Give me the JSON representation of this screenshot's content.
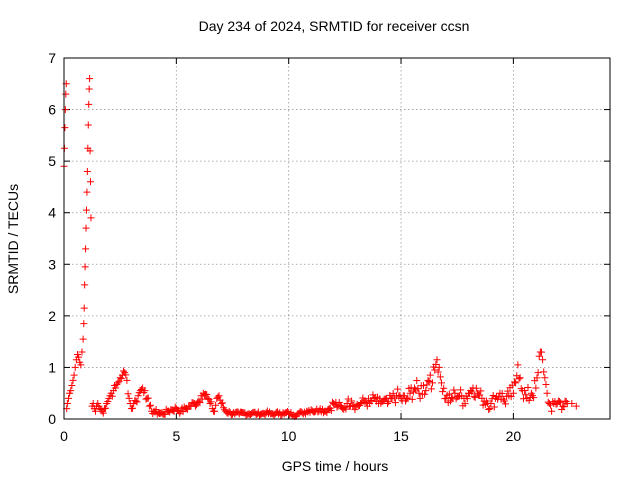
{
  "chart_data": {
    "type": "scatter",
    "title": "Day 234 of 2024, SRMTID for receiver ccsn",
    "xlabel": "GPS time / hours",
    "ylabel": "SRMTID / TECUs",
    "xlim": [
      0,
      24.3
    ],
    "ylim": [
      0,
      7
    ],
    "xticks": [
      0,
      5,
      10,
      15,
      20
    ],
    "yticks": [
      0,
      1,
      2,
      3,
      4,
      5,
      6,
      7
    ],
    "grid": true,
    "marker": "plus",
    "series": [
      {
        "name": "SRMTID",
        "color": "#ff0000",
        "x": [
          0.0,
          0.02,
          0.04,
          0.06,
          0.08,
          0.1,
          0.12,
          0.15,
          0.2,
          0.25,
          0.3,
          0.35,
          0.4,
          0.45,
          0.5,
          0.55,
          0.6,
          0.65,
          0.7,
          0.75,
          0.8,
          0.85,
          0.88,
          0.9,
          0.92,
          0.94,
          0.96,
          0.98,
          1.0,
          1.02,
          1.04,
          1.06,
          1.08,
          1.1,
          1.12,
          1.14,
          1.16,
          1.18,
          1.2,
          1.25,
          1.3,
          1.35,
          1.4,
          1.45,
          1.5,
          1.6,
          1.7,
          1.8,
          1.9,
          2.0,
          2.1,
          2.2,
          2.3,
          2.4,
          2.5,
          2.6,
          2.7,
          2.8,
          2.9,
          3.0,
          3.1,
          3.2,
          3.3,
          3.4,
          3.5,
          3.6,
          3.7,
          3.8,
          3.9,
          4.0,
          4.2,
          4.4,
          4.6,
          4.8,
          5.0,
          5.2,
          5.4,
          5.6,
          5.8,
          6.0,
          6.1,
          6.2,
          6.3,
          6.4,
          6.5,
          6.6,
          6.7,
          6.8,
          6.9,
          7.0,
          7.2,
          7.4,
          7.6,
          7.8,
          8.0,
          8.2,
          8.4,
          8.6,
          8.8,
          9.0,
          9.2,
          9.4,
          9.6,
          9.8,
          10.0,
          10.2,
          10.4,
          10.6,
          10.8,
          11.0,
          11.2,
          11.4,
          11.6,
          11.8,
          12.0,
          12.2,
          12.4,
          12.6,
          12.8,
          13.0,
          13.2,
          13.4,
          13.6,
          13.8,
          14.0,
          14.2,
          14.4,
          14.6,
          14.8,
          15.0,
          15.2,
          15.4,
          15.6,
          15.8,
          16.0,
          16.1,
          16.2,
          16.3,
          16.4,
          16.5,
          16.6,
          16.7,
          16.8,
          17.0,
          17.2,
          17.4,
          17.6,
          17.8,
          18.0,
          18.2,
          18.4,
          18.6,
          18.8,
          19.0,
          19.2,
          19.4,
          19.6,
          19.8,
          20.0,
          20.1,
          20.2,
          20.3,
          20.4,
          20.6,
          20.8,
          21.0,
          21.1,
          21.2,
          21.3,
          21.4,
          21.5,
          21.6,
          21.7,
          21.8,
          22.0,
          22.2,
          22.4,
          22.6,
          22.8
        ],
        "y": [
          4.9,
          5.25,
          5.65,
          6.0,
          6.3,
          6.5,
          0.2,
          0.3,
          0.4,
          0.5,
          0.55,
          0.65,
          0.75,
          0.85,
          1.0,
          1.15,
          1.25,
          1.2,
          1.1,
          1.05,
          1.3,
          1.55,
          1.85,
          2.15,
          2.6,
          2.95,
          3.3,
          3.7,
          4.05,
          4.4,
          4.8,
          5.25,
          5.7,
          6.1,
          6.4,
          6.6,
          5.2,
          4.6,
          3.9,
          0.25,
          0.3,
          0.2,
          0.15,
          0.25,
          0.3,
          0.2,
          0.15,
          0.2,
          0.3,
          0.4,
          0.5,
          0.55,
          0.6,
          0.7,
          0.8,
          0.85,
          0.9,
          0.75,
          0.4,
          0.2,
          0.3,
          0.35,
          0.45,
          0.55,
          0.6,
          0.55,
          0.4,
          0.25,
          0.15,
          0.15,
          0.12,
          0.1,
          0.15,
          0.18,
          0.2,
          0.15,
          0.2,
          0.25,
          0.3,
          0.35,
          0.45,
          0.5,
          0.48,
          0.4,
          0.3,
          0.2,
          0.15,
          0.4,
          0.45,
          0.3,
          0.15,
          0.12,
          0.1,
          0.1,
          0.12,
          0.1,
          0.12,
          0.1,
          0.1,
          0.12,
          0.1,
          0.1,
          0.12,
          0.1,
          0.12,
          0.08,
          0.1,
          0.12,
          0.15,
          0.18,
          0.15,
          0.2,
          0.15,
          0.2,
          0.3,
          0.25,
          0.2,
          0.3,
          0.35,
          0.25,
          0.3,
          0.35,
          0.3,
          0.4,
          0.3,
          0.35,
          0.3,
          0.4,
          0.45,
          0.4,
          0.35,
          0.5,
          0.6,
          0.5,
          0.65,
          0.55,
          0.75,
          0.85,
          0.7,
          0.95,
          1.15,
          1.0,
          0.7,
          0.4,
          0.35,
          0.5,
          0.45,
          0.4,
          0.5,
          0.6,
          0.5,
          0.4,
          0.35,
          0.3,
          0.4,
          0.5,
          0.35,
          0.45,
          0.5,
          0.7,
          1.05,
          0.8,
          0.55,
          0.4,
          0.5,
          0.6,
          0.9,
          1.3,
          1.15,
          0.8,
          0.5,
          0.3,
          0.15,
          0.3,
          0.35,
          0.25,
          0.3,
          0.3,
          0.25
        ],
        "spread": [
          0.05,
          0.05,
          0.05,
          0.05,
          0.05,
          0.05,
          0.05,
          0.08,
          0.08,
          0.08,
          0.08,
          0.08,
          0.1,
          0.1,
          0.12,
          0.12,
          0.12,
          0.12,
          0.12,
          0.15,
          0.15,
          0.05,
          0.05,
          0.05,
          0.05,
          0.05,
          0.05,
          0.05,
          0.05,
          0.05,
          0.05,
          0.05,
          0.05,
          0.05,
          0.05,
          0.05,
          0.05,
          0.05,
          0.05,
          0.12,
          0.12,
          0.1,
          0.1,
          0.1,
          0.1,
          0.08,
          0.08,
          0.08,
          0.08,
          0.1,
          0.1,
          0.1,
          0.1,
          0.1,
          0.1,
          0.1,
          0.1,
          0.1,
          0.1,
          0.08,
          0.08,
          0.1,
          0.1,
          0.1,
          0.1,
          0.1,
          0.1,
          0.08,
          0.06,
          0.06,
          0.05,
          0.05,
          0.05,
          0.06,
          0.06,
          0.06,
          0.06,
          0.08,
          0.08,
          0.1,
          0.1,
          0.1,
          0.1,
          0.1,
          0.1,
          0.08,
          0.06,
          0.08,
          0.08,
          0.08,
          0.05,
          0.04,
          0.04,
          0.04,
          0.04,
          0.04,
          0.04,
          0.04,
          0.04,
          0.04,
          0.04,
          0.04,
          0.04,
          0.04,
          0.04,
          0.04,
          0.04,
          0.04,
          0.05,
          0.05,
          0.05,
          0.05,
          0.05,
          0.08,
          0.1,
          0.1,
          0.08,
          0.1,
          0.1,
          0.1,
          0.1,
          0.1,
          0.1,
          0.12,
          0.1,
          0.12,
          0.1,
          0.12,
          0.15,
          0.15,
          0.15,
          0.18,
          0.2,
          0.2,
          0.2,
          0.2,
          0.2,
          0.2,
          0.2,
          0.2,
          0.2,
          0.15,
          0.15,
          0.15,
          0.15,
          0.15,
          0.15,
          0.2,
          0.15,
          0.15,
          0.15,
          0.15,
          0.15,
          0.15,
          0.15,
          0.15,
          0.15,
          0.15,
          0.2,
          0.2,
          0.2,
          0.15,
          0.15,
          0.2,
          0.2,
          0.2,
          0.2,
          0.2,
          0.15,
          0.12,
          0.1,
          0.1,
          0.12,
          0.12,
          0.12,
          0.12,
          0.1
        ]
      }
    ]
  }
}
